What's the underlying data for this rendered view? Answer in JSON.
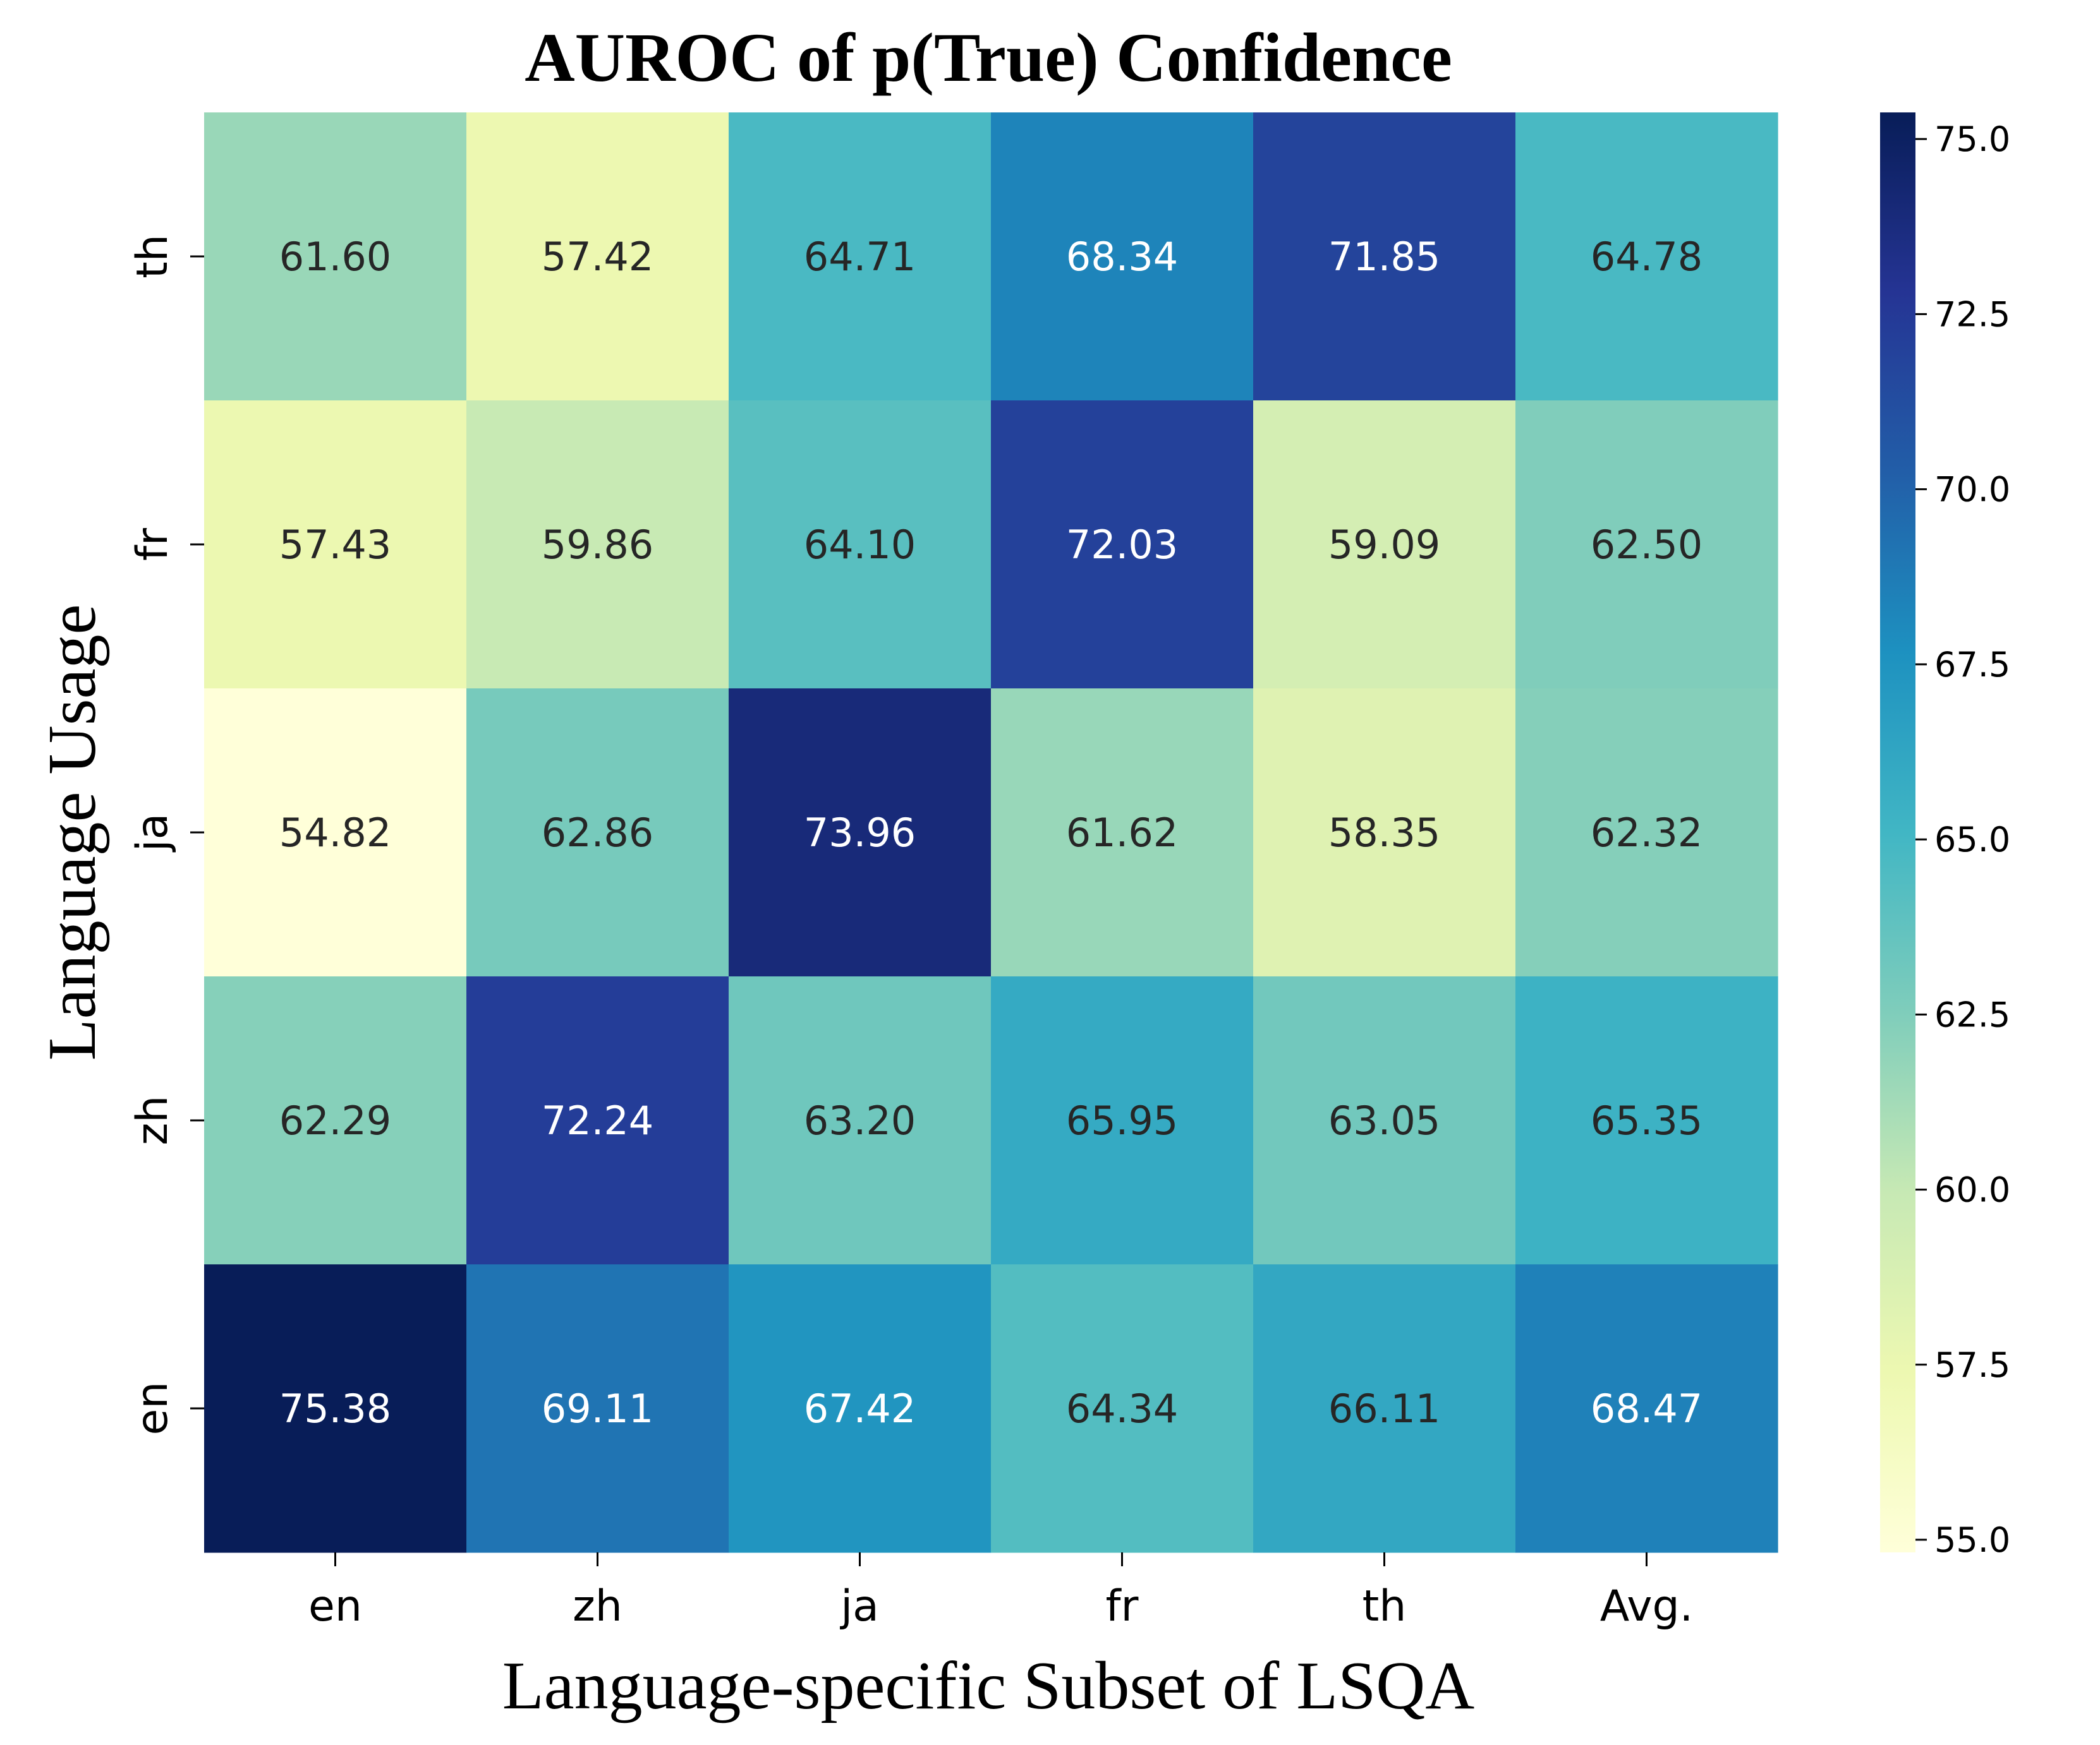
{
  "chart_data": {
    "type": "heatmap",
    "title": "AUROC of p(True) Confidence",
    "xlabel": "Language-specific Subset of LSQA",
    "ylabel": "Language Usage",
    "x_categories": [
      "en",
      "zh",
      "ja",
      "fr",
      "th",
      "Avg."
    ],
    "y_categories": [
      "th",
      "fr",
      "ja",
      "zh",
      "en"
    ],
    "values": [
      [
        61.6,
        57.42,
        64.71,
        68.34,
        71.85,
        64.78
      ],
      [
        57.43,
        59.86,
        64.1,
        72.03,
        59.09,
        62.5
      ],
      [
        54.82,
        62.86,
        73.96,
        61.62,
        58.35,
        62.32
      ],
      [
        62.29,
        72.24,
        63.2,
        65.95,
        63.05,
        65.35
      ],
      [
        75.38,
        69.11,
        67.42,
        64.34,
        66.11,
        68.47
      ]
    ],
    "value_labels": [
      [
        "61.60",
        "57.42",
        "64.71",
        "68.34",
        "71.85",
        "64.78"
      ],
      [
        "57.43",
        "59.86",
        "64.10",
        "72.03",
        "59.09",
        "62.50"
      ],
      [
        "54.82",
        "62.86",
        "73.96",
        "61.62",
        "58.35",
        "62.32"
      ],
      [
        "62.29",
        "72.24",
        "63.20",
        "65.95",
        "63.05",
        "65.35"
      ],
      [
        "75.38",
        "69.11",
        "67.42",
        "64.34",
        "66.11",
        "68.47"
      ]
    ],
    "colormap": "YlGnBu",
    "colorbar": {
      "vmin": 54.82,
      "vmax": 75.38,
      "ticks": [
        55.0,
        57.5,
        60.0,
        62.5,
        65.0,
        67.5,
        70.0,
        72.5,
        75.0
      ],
      "tick_labels": [
        "55.0",
        "57.5",
        "60.0",
        "62.5",
        "65.0",
        "67.5",
        "70.0",
        "72.5",
        "75.0"
      ]
    },
    "colormap_stops": [
      "#ffffd9",
      "#edf8b1",
      "#c7e9b4",
      "#7fcdbb",
      "#41b6c4",
      "#1d91c0",
      "#225ea8",
      "#253494",
      "#081d58"
    ],
    "light_text_color": "#ffffff",
    "dark_text_color": "#262626"
  }
}
